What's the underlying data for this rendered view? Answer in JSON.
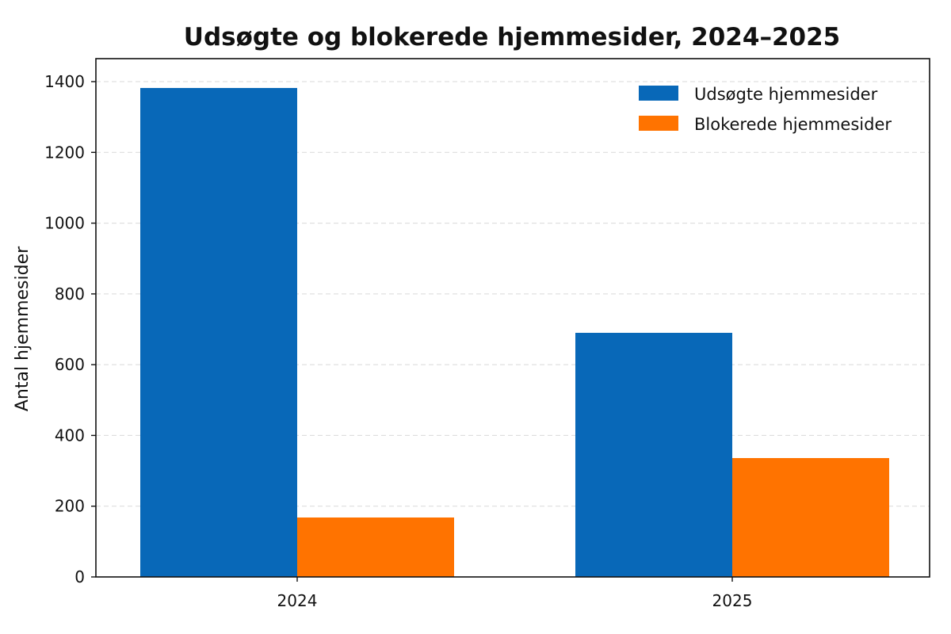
{
  "chart_data": {
    "type": "bar",
    "title": "Udsøgte og blokerede hjemmesider, 2024–2025",
    "xlabel": "",
    "ylabel": "Antal hjemmesider",
    "categories": [
      "2024",
      "2025"
    ],
    "series": [
      {
        "name": "Udsøgte hjemmesider",
        "values": [
          1382,
          690
        ],
        "color": "#0868b8"
      },
      {
        "name": "Blokerede hjemmesider",
        "values": [
          168,
          336
        ],
        "color": "#ff7300"
      }
    ],
    "ylim": [
      0,
      1400
    ],
    "yticks": [
      0,
      200,
      400,
      600,
      800,
      1000,
      1200,
      1400
    ],
    "grid": true,
    "legend_position": "top-right"
  }
}
